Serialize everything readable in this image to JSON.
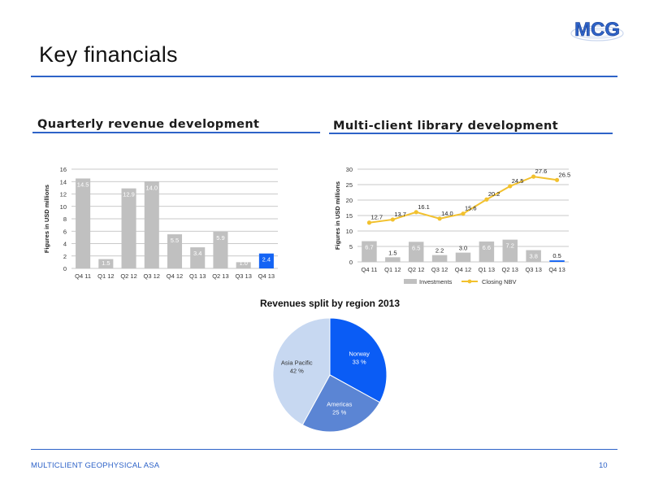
{
  "slide": {
    "title": "Key financials",
    "footer_company": "MULTICLIENT GEOPHYSICAL ASA",
    "page_number": "10",
    "logo_text": "MCG",
    "left_section_title": "Quarterly revenue development",
    "right_section_title": "Multi-client library development"
  },
  "colors": {
    "accent": "#2e63c8",
    "bar_grey": "#c0c0c0",
    "highlight_blue": "#1464f4",
    "line_gold": "#f2c12e",
    "pie_norway": "#0a5cf5",
    "pie_americas": "#5b85d4",
    "pie_asia": "#c7d8f1"
  },
  "chart_data": [
    {
      "type": "bar",
      "title": "",
      "ylabel": "Figures in USD millions",
      "xlabel": "",
      "categories": [
        "Q4 11",
        "Q1 12",
        "Q2 12",
        "Q3 12",
        "Q4 12",
        "Q1 13",
        "Q2 13",
        "Q3 13",
        "Q4 13"
      ],
      "values": [
        14.5,
        1.5,
        12.9,
        14.0,
        5.5,
        3.4,
        5.9,
        1.0,
        2.4
      ],
      "value_labels": [
        "14.5",
        "1.5",
        "12.9",
        "14.0",
        "5.5",
        "3.4",
        "5.9",
        "1.0",
        "2.4"
      ],
      "highlight_index": 8,
      "ylim": [
        0,
        16
      ],
      "yticks": [
        "0",
        "2",
        "4",
        "6",
        "8",
        "10",
        "12",
        "14",
        "16"
      ],
      "grid": true
    },
    {
      "type": "bar+line",
      "title": "",
      "ylabel": "Figures in USD millions",
      "xlabel": "",
      "categories": [
        "Q4 11",
        "Q1 12",
        "Q2 12",
        "Q3 12",
        "Q4 12",
        "Q1 13",
        "Q2 13",
        "Q3 13",
        "Q4 13"
      ],
      "series": [
        {
          "name": "Investments",
          "kind": "bar",
          "values": [
            6.7,
            1.5,
            6.5,
            2.2,
            3.0,
            6.6,
            7.2,
            3.8,
            0.5
          ],
          "labels": [
            "6.7",
            "1.5",
            "6.5",
            "2.2",
            "3.0",
            "6.6",
            "7.2",
            "3.8",
            "0.5"
          ]
        },
        {
          "name": "Closing NBV",
          "kind": "line",
          "values": [
            12.7,
            13.7,
            16.1,
            14.0,
            15.6,
            20.2,
            24.5,
            27.6,
            26.5
          ],
          "labels": [
            "12.7",
            "13.7",
            "16.1",
            "14.0",
            "15.6",
            "20.2",
            "24.5",
            "27.6",
            "26.5"
          ]
        }
      ],
      "ylim": [
        0,
        30
      ],
      "yticks": [
        "0",
        "5",
        "10",
        "15",
        "20",
        "25",
        "30"
      ],
      "grid": true,
      "legend": "bottom"
    },
    {
      "type": "pie",
      "title": "Revenues split by region 2013",
      "slices": [
        {
          "label": "Norway",
          "value": 33,
          "text": "33 %"
        },
        {
          "label": "Americas",
          "value": 25,
          "text": "25 %"
        },
        {
          "label": "Asia Pacific",
          "value": 42,
          "text": "42 %"
        }
      ]
    }
  ]
}
